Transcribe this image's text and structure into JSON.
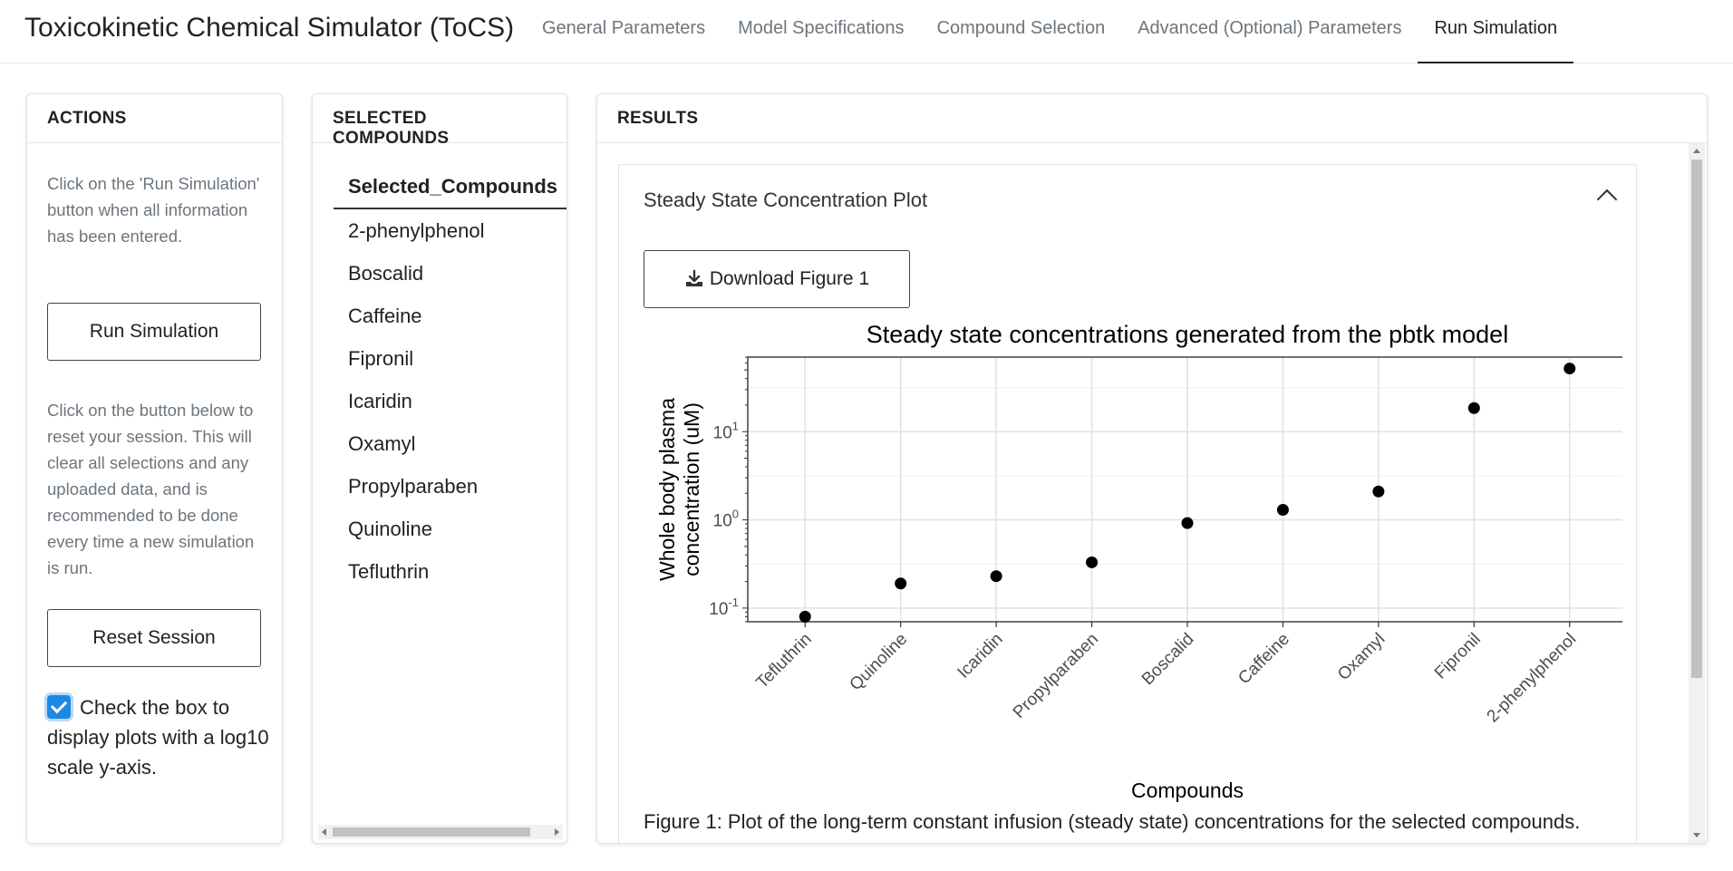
{
  "app": {
    "title": "Toxicokinetic Chemical Simulator (ToCS)",
    "tabs": [
      {
        "label": "General Parameters",
        "active": false
      },
      {
        "label": "Model Specifications",
        "active": false
      },
      {
        "label": "Compound Selection",
        "active": false
      },
      {
        "label": "Advanced (Optional) Parameters",
        "active": false
      },
      {
        "label": "Run Simulation",
        "active": true
      }
    ]
  },
  "actions": {
    "header": "ACTIONS",
    "run_help": "Click on the 'Run Simulation' button when all information has been entered.",
    "run_button": "Run Simulation",
    "reset_help": "Click on the button below to reset your session. This will clear all selections and any uploaded data, and is recommended to be done every time a new simulation is run.",
    "reset_button": "Reset Session",
    "log_checkbox": {
      "checked": true,
      "label": "Check the box to display plots with a log10 scale y-axis."
    }
  },
  "compounds": {
    "header": "SELECTED COMPOUNDS",
    "column": "Selected_Compounds",
    "rows": [
      "2-phenylphenol",
      "Boscalid",
      "Caffeine",
      "Fipronil",
      "Icaridin",
      "Oxamyl",
      "Propylparaben",
      "Quinoline",
      "Tefluthrin"
    ]
  },
  "results": {
    "header": "RESULTS",
    "panel_title": "Steady State Concentration Plot",
    "download_button": "Download Figure 1",
    "caption": "Figure 1: Plot of the long-term constant infusion (steady state) concentrations for the selected compounds."
  },
  "chart_data": {
    "type": "scatter",
    "title": "Steady state concentrations generated from the pbtk model",
    "xlabel": "Compounds",
    "ylabel": "Whole body plasma concentration (uM)",
    "ylabel_lines": [
      "Whole body plasma",
      "concentration (uM)"
    ],
    "y_scale": "log10",
    "ylim": [
      0.07,
      70
    ],
    "yticks": [
      0.1,
      1,
      10
    ],
    "ytick_labels": [
      {
        "base": "10",
        "exp": "-1"
      },
      {
        "base": "10",
        "exp": "0"
      },
      {
        "base": "10",
        "exp": "1"
      }
    ],
    "categories": [
      "Tefluthrin",
      "Quinoline",
      "Icaridin",
      "Propylparaben",
      "Boscalid",
      "Caffeine",
      "Oxamyl",
      "Fipronil",
      "2-phenylphenol"
    ],
    "values": [
      0.08,
      0.19,
      0.23,
      0.33,
      0.92,
      1.3,
      2.1,
      18.5,
      52
    ],
    "grid": true,
    "point_color": "#000000"
  }
}
